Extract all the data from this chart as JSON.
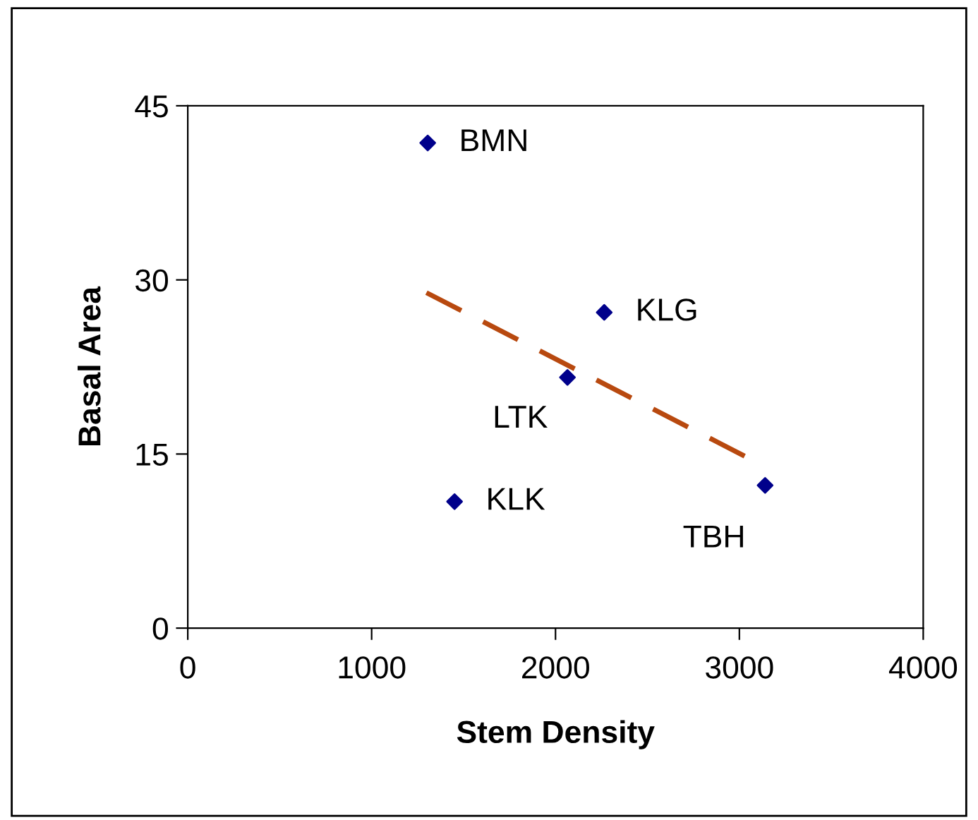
{
  "chart_data": {
    "type": "scatter",
    "xlabel": "Stem Density",
    "ylabel": "Basal Area",
    "grid": false,
    "legend": false,
    "xlim": [
      0,
      4000
    ],
    "xticks": [
      0,
      1000,
      2000,
      3000,
      4000
    ],
    "ylim": [
      0,
      45
    ],
    "yticks": [
      0,
      15,
      30,
      45
    ],
    "series": [
      {
        "marker": "diamond",
        "color": "#00008b",
        "x": [
          1305,
          2265,
          2065,
          1451,
          3140
        ],
        "values": [
          41.8,
          27.2,
          21.6,
          10.9,
          12.3
        ]
      },
      {
        "type": "line",
        "marker": "none",
        "color": "#b8490f",
        "line_style": "dashed",
        "x": [
          1298,
          3056
        ],
        "values": [
          28.9,
          14.6
        ]
      }
    ],
    "annotations": [
      {
        "text": "BMN",
        "x": 1305,
        "y": 41.8
      },
      {
        "text": "KLG",
        "x": 2265,
        "y": 27.2
      },
      {
        "text": "LTK",
        "x": 2065,
        "y": 21.6
      },
      {
        "text": "KLK",
        "x": 1451,
        "y": 10.9
      },
      {
        "text": "TBH",
        "x": 3140,
        "y": 12.3
      }
    ]
  }
}
